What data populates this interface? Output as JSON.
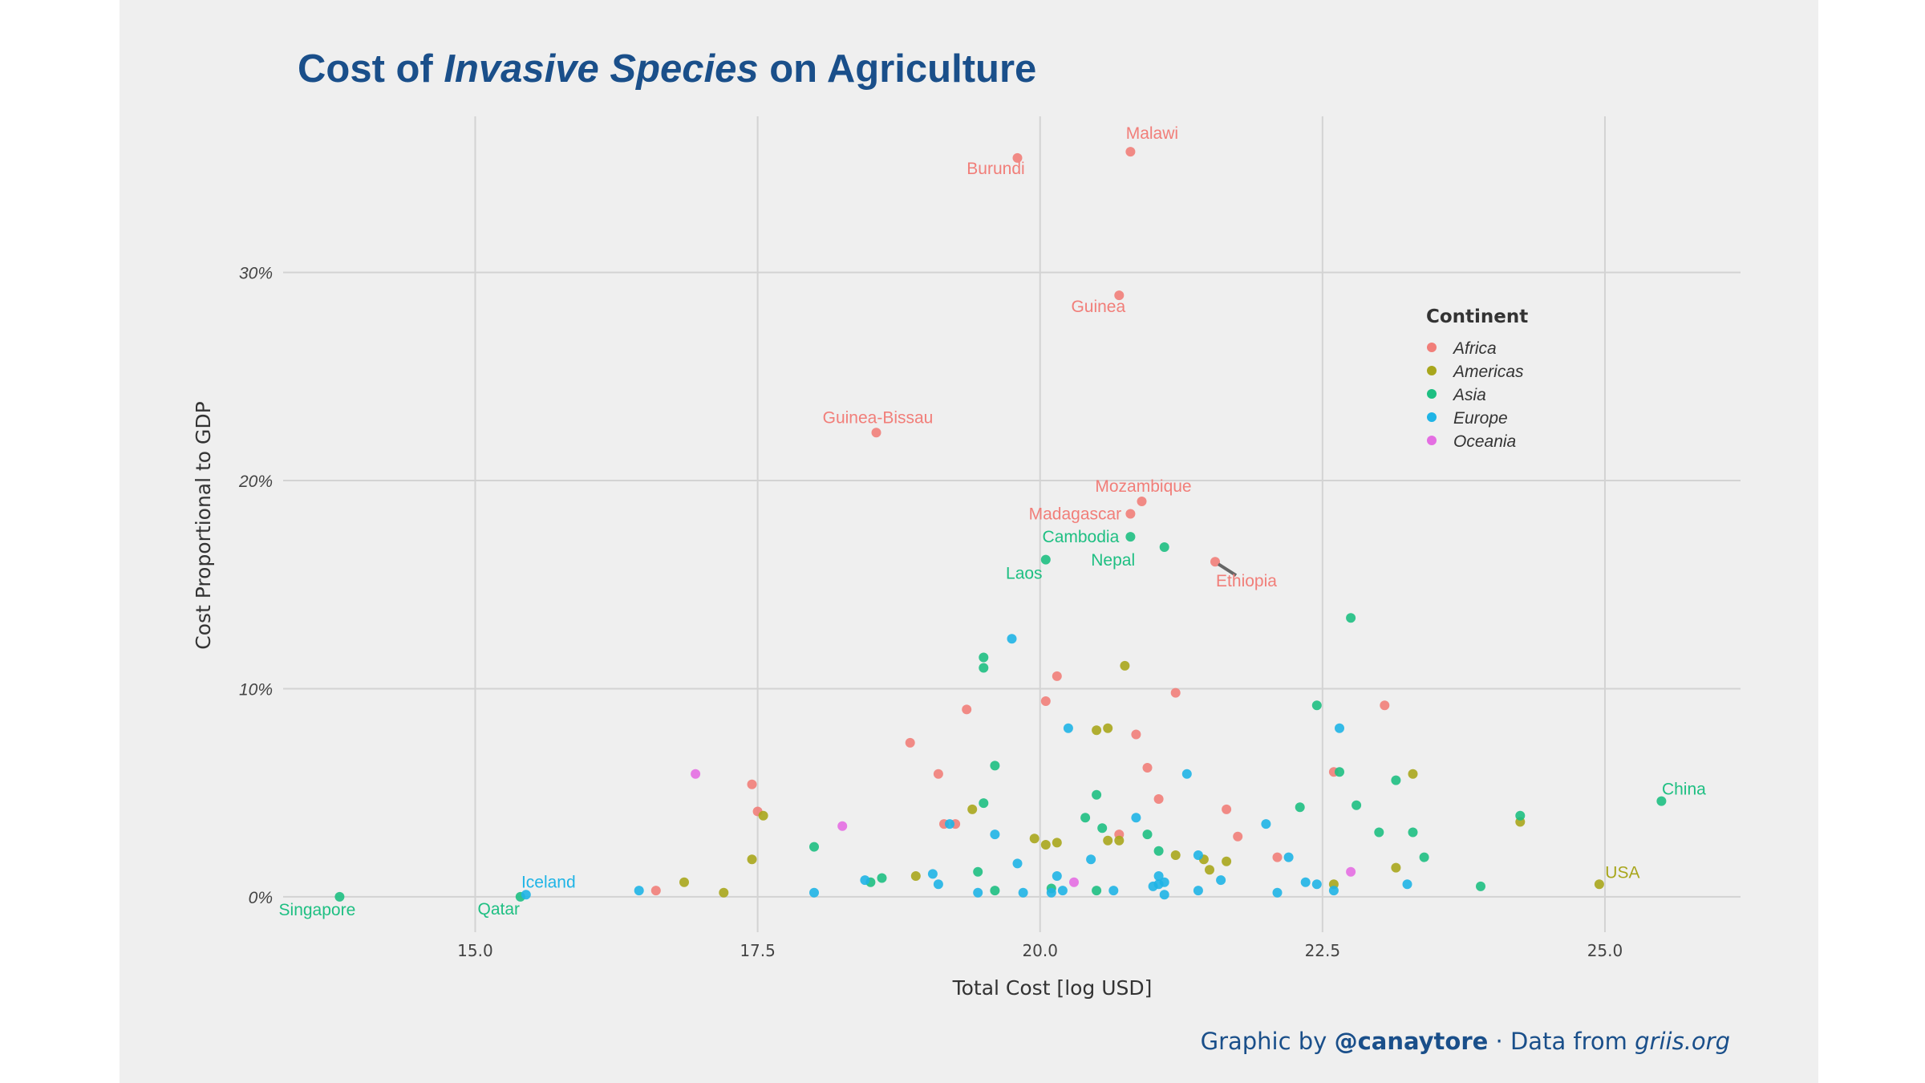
{
  "title": {
    "before": "Cost of ",
    "emphasis": "Invasive Species",
    "after": " on Agriculture"
  },
  "caption": {
    "prefix": "Graphic by ",
    "handle": "@canaytore",
    "middle": " · Data from ",
    "site": "griis.org"
  },
  "chart_data": {
    "type": "scatter",
    "xlabel": "Total Cost [log USD]",
    "ylabel": "Cost Proportional to GDP",
    "xlim": [
      13.3,
      26.2
    ],
    "ylim": [
      -1.7,
      37.5
    ],
    "xticks": [
      15.0,
      17.5,
      20.0,
      22.5,
      25.0
    ],
    "xtick_labels": [
      "15.0",
      "17.5",
      "20.0",
      "22.5",
      "25.0"
    ],
    "yticks": [
      0,
      10,
      20,
      30
    ],
    "ytick_labels": [
      "0%",
      "10%",
      "20%",
      "30%"
    ],
    "grid": true,
    "legend": {
      "title": "Continent",
      "position": "right",
      "entries": [
        "Africa",
        "Americas",
        "Asia",
        "Europe",
        "Oceania"
      ]
    },
    "colors": {
      "Africa": "#f17e79",
      "Americas": "#a8a61c",
      "Asia": "#1ebf82",
      "Europe": "#1fb4e6",
      "Oceania": "#e46ee2"
    },
    "series": [
      {
        "name": "Africa",
        "points": [
          [
            19.8,
            35.5
          ],
          [
            20.8,
            35.8
          ],
          [
            20.7,
            28.9
          ],
          [
            18.55,
            22.3
          ],
          [
            20.9,
            19.0
          ],
          [
            20.8,
            18.4
          ],
          [
            21.55,
            16.1
          ],
          [
            20.15,
            10.6
          ],
          [
            21.2,
            9.8
          ],
          [
            20.05,
            9.4
          ],
          [
            19.35,
            9.0
          ],
          [
            23.05,
            9.2
          ],
          [
            18.85,
            7.4
          ],
          [
            20.85,
            7.8
          ],
          [
            20.95,
            6.2
          ],
          [
            22.6,
            6.0
          ],
          [
            19.1,
            5.9
          ],
          [
            17.45,
            5.4
          ],
          [
            17.5,
            4.1
          ],
          [
            21.05,
            4.7
          ],
          [
            21.65,
            4.2
          ],
          [
            19.15,
            3.5
          ],
          [
            19.25,
            3.5
          ],
          [
            20.7,
            3.0
          ],
          [
            21.75,
            2.9
          ],
          [
            22.1,
            1.9
          ],
          [
            16.6,
            0.3
          ]
        ]
      },
      {
        "name": "Americas",
        "points": [
          [
            20.75,
            11.1
          ],
          [
            20.5,
            8.0
          ],
          [
            20.6,
            8.1
          ],
          [
            23.3,
            5.9
          ],
          [
            17.55,
            3.9
          ],
          [
            19.4,
            4.2
          ],
          [
            24.25,
            3.6
          ],
          [
            19.95,
            2.8
          ],
          [
            20.05,
            2.5
          ],
          [
            20.15,
            2.6
          ],
          [
            20.6,
            2.7
          ],
          [
            20.7,
            2.7
          ],
          [
            21.2,
            2.0
          ],
          [
            17.45,
            1.8
          ],
          [
            21.45,
            1.8
          ],
          [
            21.65,
            1.7
          ],
          [
            21.5,
            1.3
          ],
          [
            23.15,
            1.4
          ],
          [
            18.9,
            1.0
          ],
          [
            16.85,
            0.7
          ],
          [
            22.6,
            0.6
          ],
          [
            24.95,
            0.6
          ],
          [
            17.2,
            0.2
          ]
        ]
      },
      {
        "name": "Asia",
        "points": [
          [
            20.8,
            17.3
          ],
          [
            21.1,
            16.8
          ],
          [
            20.05,
            16.2
          ],
          [
            22.75,
            13.4
          ],
          [
            19.5,
            11.5
          ],
          [
            19.5,
            11.0
          ],
          [
            22.45,
            9.2
          ],
          [
            19.6,
            6.3
          ],
          [
            22.65,
            6.0
          ],
          [
            23.15,
            5.6
          ],
          [
            25.5,
            4.6
          ],
          [
            20.5,
            4.9
          ],
          [
            19.5,
            4.5
          ],
          [
            22.8,
            4.4
          ],
          [
            22.3,
            4.3
          ],
          [
            24.25,
            3.9
          ],
          [
            20.4,
            3.8
          ],
          [
            20.55,
            3.3
          ],
          [
            20.95,
            3.0
          ],
          [
            23.0,
            3.1
          ],
          [
            23.3,
            3.1
          ],
          [
            18.0,
            2.4
          ],
          [
            21.05,
            2.2
          ],
          [
            23.4,
            1.9
          ],
          [
            19.45,
            1.2
          ],
          [
            18.6,
            0.9
          ],
          [
            18.5,
            0.7
          ],
          [
            20.1,
            0.4
          ],
          [
            20.5,
            0.3
          ],
          [
            19.6,
            0.3
          ],
          [
            23.9,
            0.5
          ],
          [
            13.8,
            0.0
          ],
          [
            15.4,
            0.0
          ]
        ]
      },
      {
        "name": "Europe",
        "points": [
          [
            19.75,
            12.4
          ],
          [
            20.25,
            8.1
          ],
          [
            22.65,
            8.1
          ],
          [
            21.3,
            5.9
          ],
          [
            20.85,
            3.8
          ],
          [
            22.0,
            3.5
          ],
          [
            19.2,
            3.5
          ],
          [
            19.6,
            3.0
          ],
          [
            21.4,
            2.0
          ],
          [
            22.2,
            1.9
          ],
          [
            20.45,
            1.8
          ],
          [
            19.8,
            1.6
          ],
          [
            19.05,
            1.1
          ],
          [
            20.15,
            1.0
          ],
          [
            21.05,
            1.0
          ],
          [
            21.1,
            0.7
          ],
          [
            21.05,
            0.6
          ],
          [
            21.0,
            0.5
          ],
          [
            21.6,
            0.8
          ],
          [
            22.35,
            0.7
          ],
          [
            22.45,
            0.6
          ],
          [
            23.25,
            0.6
          ],
          [
            18.45,
            0.8
          ],
          [
            19.1,
            0.6
          ],
          [
            20.2,
            0.3
          ],
          [
            19.45,
            0.2
          ],
          [
            19.85,
            0.2
          ],
          [
            20.65,
            0.3
          ],
          [
            21.4,
            0.3
          ],
          [
            22.1,
            0.2
          ],
          [
            22.6,
            0.3
          ],
          [
            21.1,
            0.1
          ],
          [
            16.45,
            0.3
          ],
          [
            18.0,
            0.2
          ],
          [
            20.1,
            0.2
          ],
          [
            15.45,
            0.1
          ]
        ]
      },
      {
        "name": "Oceania",
        "points": [
          [
            16.95,
            5.9
          ],
          [
            18.25,
            3.4
          ],
          [
            22.75,
            1.2
          ],
          [
            20.3,
            0.7
          ]
        ]
      }
    ],
    "annotations": [
      {
        "text": "Malawi",
        "x": 20.8,
        "y": 35.8,
        "series": "Africa"
      },
      {
        "text": "Burundi",
        "x": 19.8,
        "y": 35.5,
        "series": "Africa"
      },
      {
        "text": "Guinea",
        "x": 20.7,
        "y": 28.9,
        "series": "Africa"
      },
      {
        "text": "Guinea-Bissau",
        "x": 18.55,
        "y": 22.3,
        "series": "Africa"
      },
      {
        "text": "Mozambique",
        "x": 20.9,
        "y": 19.0,
        "series": "Africa"
      },
      {
        "text": "Madagascar",
        "x": 20.8,
        "y": 18.4,
        "series": "Africa"
      },
      {
        "text": "Cambodia",
        "x": 20.8,
        "y": 17.3,
        "series": "Asia"
      },
      {
        "text": "Nepal",
        "x": 21.1,
        "y": 16.8,
        "series": "Asia"
      },
      {
        "text": "Laos",
        "x": 20.05,
        "y": 16.2,
        "series": "Asia"
      },
      {
        "text": "Ethiopia",
        "x": 21.55,
        "y": 16.1,
        "series": "Africa"
      },
      {
        "text": "China",
        "x": 25.5,
        "y": 4.6,
        "series": "Asia"
      },
      {
        "text": "USA",
        "x": 24.95,
        "y": 0.6,
        "series": "Americas"
      },
      {
        "text": "Iceland",
        "x": 15.45,
        "y": 0.1,
        "series": "Europe"
      },
      {
        "text": "Singapore",
        "x": 13.8,
        "y": 0.0,
        "series": "Asia"
      },
      {
        "text": "Qatar",
        "x": 15.4,
        "y": 0.0,
        "series": "Asia"
      }
    ]
  }
}
